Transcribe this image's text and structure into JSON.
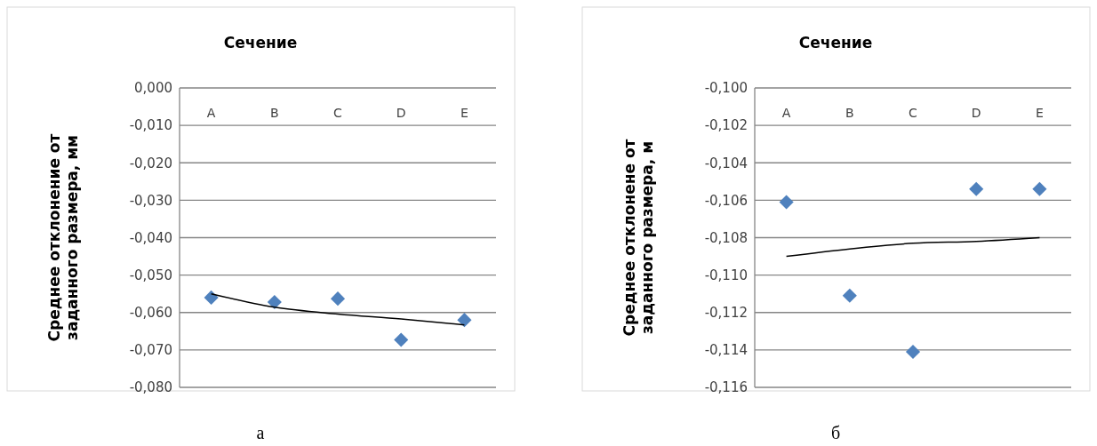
{
  "chart_data": [
    {
      "type": "scatter",
      "title": "Сечение",
      "ylabel": "Среднее отклонение от заданного размера, мм",
      "categories": [
        "A",
        "B",
        "C",
        "D",
        "E"
      ],
      "series": [
        {
          "color": "#4f81bd",
          "marker": "diamond",
          "values": [
            -0.056,
            -0.0572,
            -0.0563,
            -0.0673,
            -0.062
          ]
        },
        {
          "type": "line",
          "color": "#000000",
          "values": [
            -0.055,
            -0.0586,
            -0.0604,
            -0.0617,
            -0.0633
          ]
        }
      ],
      "ylim": [
        -0.08,
        0
      ],
      "yticks": [
        {
          "value": 0,
          "label": "0,000"
        },
        {
          "value": -0.01,
          "label": "-0,010"
        },
        {
          "value": -0.02,
          "label": "-0,020"
        },
        {
          "value": -0.03,
          "label": "-0,030"
        },
        {
          "value": -0.04,
          "label": "-0,040"
        },
        {
          "value": -0.05,
          "label": "-0,050"
        },
        {
          "value": -0.06,
          "label": "-0,060"
        },
        {
          "value": -0.07,
          "label": "-0,070"
        },
        {
          "value": -0.08,
          "label": "-0,080"
        }
      ],
      "grid": "y",
      "annotations": [
        "а"
      ]
    },
    {
      "type": "scatter",
      "title": "Сечение",
      "ylabel": "Среднее отклонене от заданного размера, м",
      "categories": [
        "A",
        "B",
        "C",
        "D",
        "E"
      ],
      "series": [
        {
          "color": "#4f81bd",
          "marker": "diamond",
          "values": [
            -0.1061,
            -0.1111,
            -0.1141,
            -0.1054,
            -0.1054
          ]
        },
        {
          "type": "line",
          "color": "#000000",
          "values": [
            -0.109,
            -0.1086,
            -0.1083,
            -0.1082,
            -0.108
          ]
        }
      ],
      "ylim": [
        -0.116,
        -0.1
      ],
      "yticks": [
        {
          "value": -0.1,
          "label": "-0,100"
        },
        {
          "value": -0.102,
          "label": "-0,102"
        },
        {
          "value": -0.104,
          "label": "-0,104"
        },
        {
          "value": -0.106,
          "label": "-0,106"
        },
        {
          "value": -0.108,
          "label": "-0,108"
        },
        {
          "value": -0.11,
          "label": "-0,110"
        },
        {
          "value": -0.112,
          "label": "-0,112"
        },
        {
          "value": -0.114,
          "label": "-0,114"
        },
        {
          "value": -0.116,
          "label": "-0,116"
        }
      ],
      "grid": "y",
      "annotations": [
        "б"
      ]
    }
  ]
}
